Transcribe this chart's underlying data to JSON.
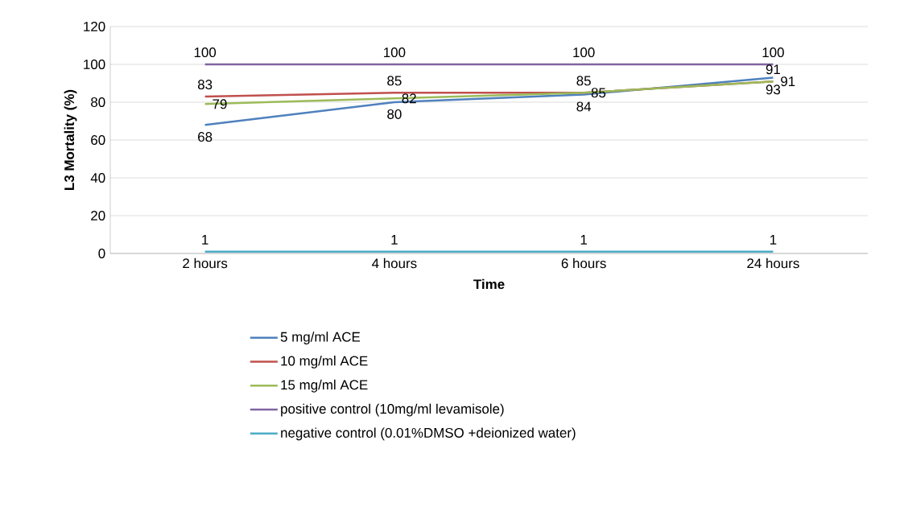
{
  "chart_data": {
    "type": "line",
    "xlabel": "Time",
    "ylabel": "L3 Mortality (%)",
    "categories": [
      "2 hours",
      "4 hours",
      "6 hours",
      "24 hours"
    ],
    "series": [
      {
        "name": "5 mg/ml ACE",
        "color": "#4f81bd",
        "values": [
          68,
          80,
          84,
          93
        ]
      },
      {
        "name": "10 mg/ml ACE",
        "color": "#c0504d",
        "values": [
          83,
          85,
          85,
          91
        ]
      },
      {
        "name": "15 mg/ml ACE",
        "color": "#9bbb59",
        "values": [
          79,
          82,
          85,
          91
        ]
      },
      {
        "name": "positive control (10mg/ml levamisole)",
        "color": "#8064a2",
        "values": [
          100,
          100,
          100,
          100
        ]
      },
      {
        "name": "negative control (0.01%DMSO +deionized water)",
        "color": "#4bacc6",
        "values": [
          1,
          1,
          1,
          1
        ]
      }
    ],
    "ylim": [
      0,
      120
    ],
    "yticks": [
      0,
      20,
      40,
      60,
      80,
      100,
      120
    ],
    "grid": "y",
    "legend": "bottom",
    "data_labels": true,
    "marker": "none",
    "line_style": "solid"
  }
}
